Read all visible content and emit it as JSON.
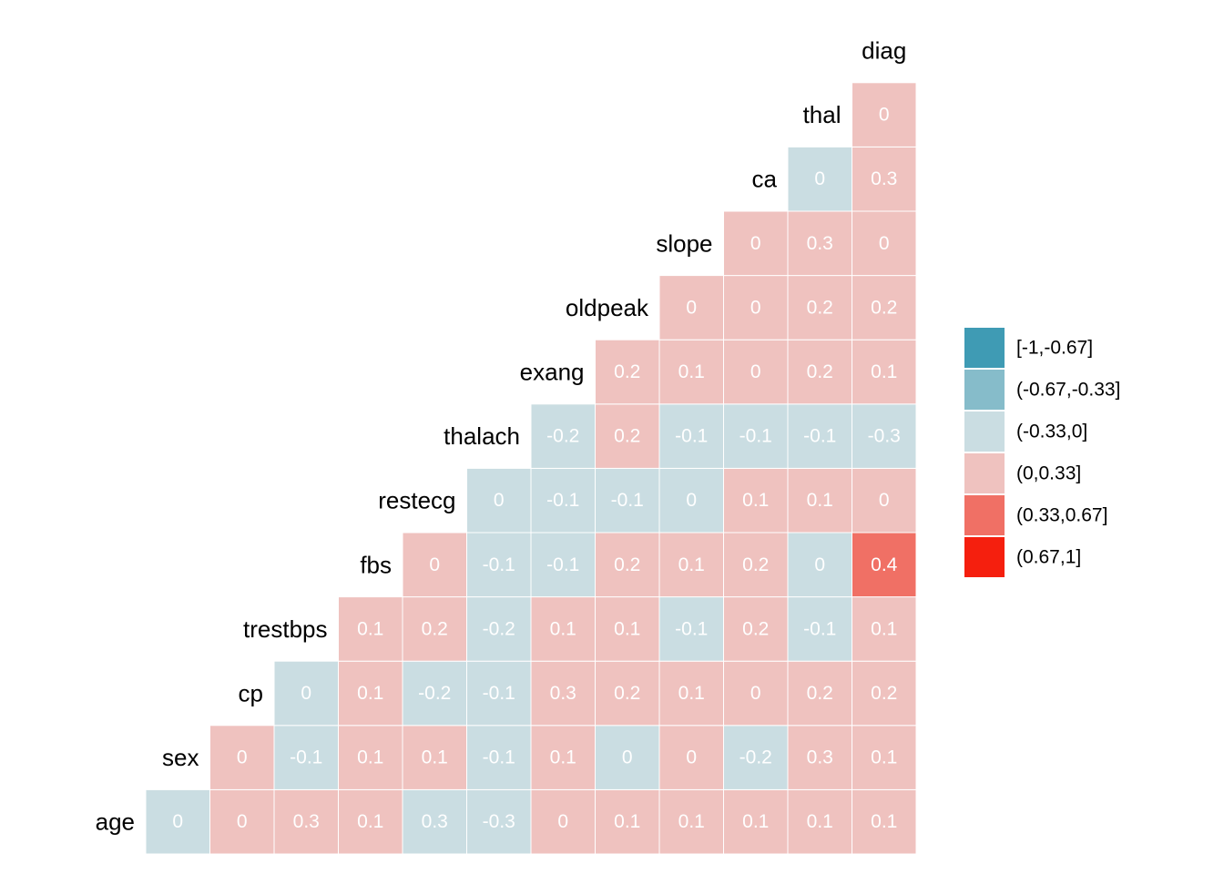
{
  "chart_data": {
    "type": "heatmap",
    "variables": [
      "age",
      "sex",
      "cp",
      "trestbps",
      "fbs",
      "restecg",
      "thalach",
      "exang",
      "oldpeak",
      "slope",
      "ca",
      "thal",
      "diag"
    ],
    "matrix": [
      [
        "0",
        "0",
        "0.3",
        "0.1",
        "0.3",
        "-0.3",
        "0",
        "0.1",
        "0.1",
        "0.1",
        "0.1",
        "0.1"
      ],
      [
        "0",
        "-0.1",
        "0.1",
        "0.1",
        "-0.1",
        "0.1",
        "0",
        "0",
        "-0.2",
        "0.3",
        "0.1"
      ],
      [
        "0",
        "0.1",
        "-0.2",
        "-0.1",
        "0.3",
        "0.2",
        "0.1",
        "0",
        "0.2",
        "0.2"
      ],
      [
        "0.1",
        "0.2",
        "-0.2",
        "0.1",
        "0.1",
        "-0.1",
        "0.2",
        "-0.1",
        "0.1"
      ],
      [
        "0",
        "-0.1",
        "-0.1",
        "0.2",
        "0.1",
        "0.2",
        "0",
        "0.4"
      ],
      [
        "0",
        "-0.1",
        "-0.1",
        "0",
        "0.1",
        "0.1",
        "0"
      ],
      [
        "-0.2",
        "0.2",
        "-0.1",
        "-0.1",
        "-0.1",
        "-0.3"
      ],
      [
        "0.2",
        "0.1",
        "0",
        "0.2",
        "0.1"
      ],
      [
        "0",
        "0",
        "0.2",
        "0.2"
      ],
      [
        "0",
        "0.3",
        "0"
      ],
      [
        "0",
        "0.3"
      ],
      [
        "0"
      ]
    ],
    "signs": [
      [
        "-",
        "+",
        "+",
        "+",
        "-",
        "-",
        "+",
        "+",
        "+",
        "+",
        "+",
        "+"
      ],
      [
        "+",
        "-",
        "+",
        "+",
        "-",
        "+",
        "-",
        "+",
        "-",
        "+",
        "+"
      ],
      [
        "-",
        "+",
        "-",
        "-",
        "+",
        "+",
        "+",
        "+",
        "+",
        "+"
      ],
      [
        "+",
        "+",
        "-",
        "+",
        "+",
        "-",
        "+",
        "-",
        "+"
      ],
      [
        "+",
        "-",
        "-",
        "+",
        "+",
        "+",
        "-",
        "+"
      ],
      [
        "-",
        "-",
        "-",
        "-",
        "+",
        "+",
        "+"
      ],
      [
        "-",
        "+",
        "-",
        "-",
        "-",
        "-"
      ],
      [
        "+",
        "+",
        "+",
        "+",
        "+"
      ],
      [
        "+",
        "+",
        "+",
        "+"
      ],
      [
        "+",
        "+",
        "+"
      ],
      [
        "-",
        "+"
      ],
      [
        "+"
      ]
    ],
    "legend": [
      {
        "label": "[-1,-0.67]",
        "color": "#3f9bb4"
      },
      {
        "label": "(-0.67,-0.33]",
        "color": "#86bcca"
      },
      {
        "label": "(-0.33,0]",
        "color": "#cadde2"
      },
      {
        "label": "(0,0.33]",
        "color": "#efc2bf"
      },
      {
        "label": "(0.33,0.67]",
        "color": "#f07065"
      },
      {
        "label": "(0.67,1]",
        "color": "#f51f0e"
      }
    ]
  }
}
